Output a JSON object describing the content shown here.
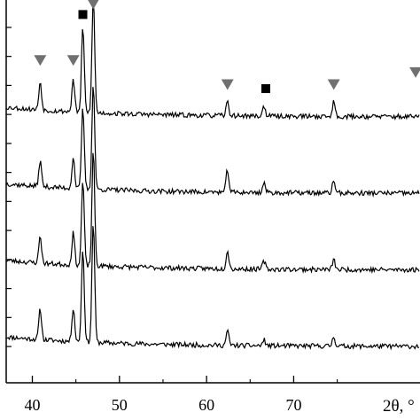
{
  "chart_data": {
    "type": "line",
    "title": "",
    "xlabel": "2θ, °",
    "ylabel": "",
    "xlim": [
      37,
      84.5
    ],
    "ylim": [
      -0.45,
      4.3
    ],
    "x_ticks": [
      40,
      50,
      60,
      70
    ],
    "x_tick_labels": [
      "40",
      "50",
      "60",
      "70"
    ],
    "x_ticks_minor": [
      45,
      55,
      65,
      75
    ],
    "y_ticks": [
      0,
      0.36,
      0.72,
      1.08,
      1.44,
      1.8,
      2.16,
      2.52,
      2.88,
      3.24,
      3.6,
      3.96
    ],
    "grid": false,
    "legend": "none",
    "line_color": "#000000",
    "series": [
      {
        "baseline": 0.0,
        "offset": 0.0,
        "noise": 0.03,
        "seed": 11,
        "peaks": [
          [
            40.9,
            0.38
          ],
          [
            44.7,
            0.42
          ],
          [
            45.8,
            1.15
          ],
          [
            47.0,
            1.5
          ],
          [
            62.4,
            0.18
          ],
          [
            66.6,
            0.07
          ],
          [
            74.6,
            0.12
          ]
        ]
      },
      {
        "baseline": 0.0,
        "offset": 0.95,
        "noise": 0.03,
        "seed": 23,
        "peaks": [
          [
            40.9,
            0.34
          ],
          [
            44.7,
            0.4
          ],
          [
            45.8,
            1.05
          ],
          [
            47.0,
            1.42
          ],
          [
            62.4,
            0.23
          ],
          [
            66.6,
            0.1
          ],
          [
            74.6,
            0.12
          ]
        ]
      },
      {
        "baseline": 0.0,
        "offset": 1.9,
        "noise": 0.03,
        "seed": 37,
        "peaks": [
          [
            40.9,
            0.32
          ],
          [
            44.7,
            0.38
          ],
          [
            45.8,
            1.0
          ],
          [
            47.0,
            1.3
          ],
          [
            62.4,
            0.28
          ],
          [
            66.6,
            0.12
          ],
          [
            74.6,
            0.16
          ]
        ]
      },
      {
        "baseline": 0.0,
        "offset": 2.85,
        "noise": 0.03,
        "seed": 53,
        "peaks": [
          [
            40.9,
            0.35
          ],
          [
            44.7,
            0.4
          ],
          [
            45.8,
            1.06
          ],
          [
            47.0,
            1.42
          ],
          [
            62.4,
            0.17
          ],
          [
            66.6,
            0.12
          ],
          [
            74.6,
            0.18
          ]
        ]
      }
    ],
    "markers": [
      {
        "shape": "triangle",
        "color": "#707070",
        "x": 40.9,
        "y": 3.55
      },
      {
        "shape": "triangle",
        "color": "#707070",
        "x": 44.7,
        "y": 3.55
      },
      {
        "shape": "triangle",
        "color": "#707070",
        "x": 47.0,
        "y": 4.25
      },
      {
        "shape": "triangle",
        "color": "#707070",
        "x": 62.4,
        "y": 3.25
      },
      {
        "shape": "triangle",
        "color": "#707070",
        "x": 74.6,
        "y": 3.25
      },
      {
        "shape": "triangle",
        "color": "#707070",
        "x": 84.0,
        "y": 3.4
      },
      {
        "shape": "square",
        "color": "#000000",
        "x": 45.8,
        "y": 4.12
      },
      {
        "shape": "square",
        "color": "#000000",
        "x": 66.8,
        "y": 3.2
      }
    ]
  }
}
